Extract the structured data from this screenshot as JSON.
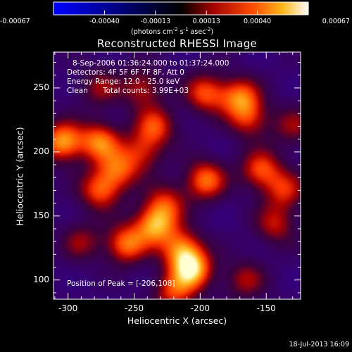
{
  "colorbar": {
    "tick_labels": [
      "-0.00067",
      "-0.00040",
      "-0.00013",
      "0.00013",
      "0.00040",
      "0.00067"
    ],
    "unit_main": "(photons cm",
    "unit_exp1": "-2",
    "unit_mid": " s",
    "unit_exp2": "-1",
    "unit_mid2": " asec",
    "unit_exp3": "-2",
    "unit_end": ")",
    "colors": [
      "#0000ff",
      "#000000",
      "#9e0000",
      "#ff4a00",
      "#ffb81a",
      "#ffffff"
    ]
  },
  "chart_data": {
    "type": "heatmap",
    "title": "Reconstructed RHESSI Image",
    "xlabel": "Heliocentric X (arcsec)",
    "ylabel": "Heliocentric Y (arcsec)",
    "xlim": [
      -311,
      -124
    ],
    "ylim": [
      85,
      278
    ],
    "x_ticks": [
      -300,
      -250,
      -200,
      -150
    ],
    "y_ticks": [
      100,
      150,
      200,
      250
    ],
    "x_tick_labels": [
      "-300",
      "-250",
      "-200",
      "-150"
    ],
    "y_tick_labels": [
      "100",
      "150",
      "200",
      "250"
    ],
    "peak": {
      "x": -206,
      "y": 108
    },
    "annotations": [
      "8-Sep-2006 01:36:24.000 to 01:37:24.000",
      "Detectors: 4F 5F 6F 7F 8F, Att 0",
      "Energy Range: 12.0 - 25.0 keV",
      "Clean",
      "Total counts: 3.99E+03"
    ],
    "peak_label": "Position of Peak = [-206,108]",
    "blobs": [
      {
        "x": -304,
        "y": 208,
        "amp": 1.0
      },
      {
        "x": -276,
        "y": 208,
        "amp": 0.85
      },
      {
        "x": -276,
        "y": 170,
        "amp": 0.75
      },
      {
        "x": -262,
        "y": 186,
        "amp": 0.7
      },
      {
        "x": -256,
        "y": 128,
        "amp": 0.85
      },
      {
        "x": -234,
        "y": 143,
        "amp": 0.95
      },
      {
        "x": -226,
        "y": 160,
        "amp": 0.6
      },
      {
        "x": -244,
        "y": 200,
        "amp": 0.55
      },
      {
        "x": -234,
        "y": 220,
        "amp": 0.7
      },
      {
        "x": -206,
        "y": 108,
        "amp": 1.05
      },
      {
        "x": -214,
        "y": 124,
        "amp": 0.85
      },
      {
        "x": -196,
        "y": 178,
        "amp": 0.85
      },
      {
        "x": -196,
        "y": 246,
        "amp": 0.75
      },
      {
        "x": -170,
        "y": 243,
        "amp": 0.8
      },
      {
        "x": -163,
        "y": 226,
        "amp": 0.6
      },
      {
        "x": -154,
        "y": 186,
        "amp": 0.75
      },
      {
        "x": -136,
        "y": 170,
        "amp": 0.6
      },
      {
        "x": -143,
        "y": 143,
        "amp": 0.55
      },
      {
        "x": -166,
        "y": 100,
        "amp": 0.5
      },
      {
        "x": -276,
        "y": 250,
        "amp": 0.45
      },
      {
        "x": -244,
        "y": 250,
        "amp": 0.55
      },
      {
        "x": -290,
        "y": 130,
        "amp": 0.45
      },
      {
        "x": -130,
        "y": 220,
        "amp": 0.45
      },
      {
        "x": -220,
        "y": 90,
        "amp": 0.65
      }
    ]
  },
  "footer": {
    "date": "18-Jul-2013 16:09"
  }
}
